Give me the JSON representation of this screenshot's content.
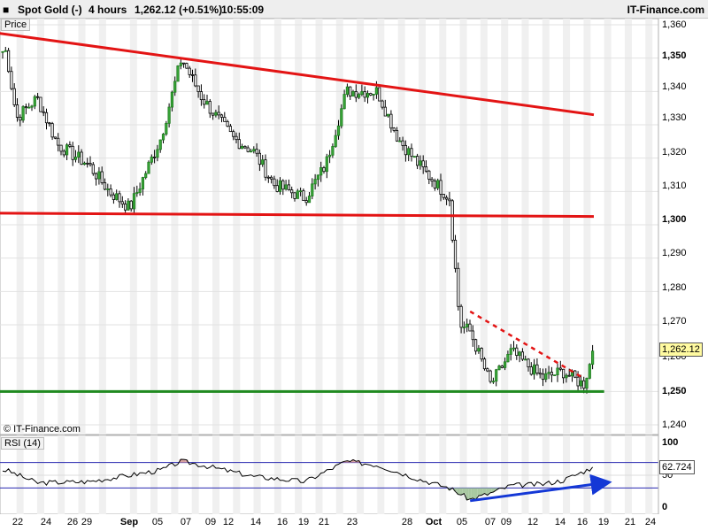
{
  "header": {
    "instrument": "Spot Gold (-)",
    "timeframe": "4 hours",
    "last_change": "1,262.12 (+0.51%)",
    "time": "10:55:09",
    "brand": "IT-Finance.com"
  },
  "price_pane": {
    "label": "Price",
    "copyright": "© IT-Finance.com",
    "last_price_label": "1,262.12"
  },
  "rsi_pane": {
    "label": "RSI (14)",
    "last_value_label": "62.724"
  },
  "colors": {
    "resistance_trendline": "#e31414",
    "support_line": "#1f8a1f",
    "breakout_line": "#e31414",
    "rsi_trendline": "#1438d6",
    "candle_up": "#1e7a1e",
    "candle_down": "#000000",
    "rsi_overbought_fill": "#d9a0a0",
    "rsi_oversold_fill": "#a8c8a0"
  },
  "chart_data": [
    {
      "type": "candlestick",
      "title": "Spot Gold (-) 4 hours",
      "ylabel": "Price",
      "ylim": [
        1240,
        1360
      ],
      "yticks": [
        "1,360",
        "1,350",
        "1,340",
        "1,330",
        "1,320",
        "1,310",
        "1,300",
        "1,290",
        "1,280",
        "1,270",
        "1,260",
        "1,250",
        "1,240"
      ],
      "x_tick_labels": [
        "22",
        "24",
        "26",
        "29",
        "Sep",
        "05",
        "07",
        "09",
        "12",
        "14",
        "16",
        "19",
        "21",
        "23",
        "28",
        "Oct",
        "05",
        "07",
        "09",
        "12",
        "14",
        "16",
        "19",
        "21",
        "24"
      ],
      "close_path": [
        {
          "x": "Aug 21",
          "y": 1352
        },
        {
          "x": "Aug 22",
          "y": 1332
        },
        {
          "x": "Aug 24",
          "y": 1338
        },
        {
          "x": "Aug 26",
          "y": 1324
        },
        {
          "x": "Aug 29",
          "y": 1318
        },
        {
          "x": "Aug 31",
          "y": 1310
        },
        {
          "x": "Sep 02",
          "y": 1305
        },
        {
          "x": "Sep 05",
          "y": 1326
        },
        {
          "x": "Sep 07",
          "y": 1350
        },
        {
          "x": "Sep 09",
          "y": 1338
        },
        {
          "x": "Sep 12",
          "y": 1326
        },
        {
          "x": "Sep 14",
          "y": 1322
        },
        {
          "x": "Sep 16",
          "y": 1312
        },
        {
          "x": "Sep 19",
          "y": 1308
        },
        {
          "x": "Sep 21",
          "y": 1318
        },
        {
          "x": "Sep 23",
          "y": 1340
        },
        {
          "x": "Sep 26",
          "y": 1340
        },
        {
          "x": "Sep 28",
          "y": 1326
        },
        {
          "x": "Sep 30",
          "y": 1318
        },
        {
          "x": "Oct 03",
          "y": 1308
        },
        {
          "x": "Oct 04",
          "y": 1270
        },
        {
          "x": "Oct 05",
          "y": 1268
        },
        {
          "x": "Oct 07",
          "y": 1252
        },
        {
          "x": "Oct 09",
          "y": 1262
        },
        {
          "x": "Oct 12",
          "y": 1254
        },
        {
          "x": "Oct 14",
          "y": 1256
        },
        {
          "x": "Oct 16",
          "y": 1252
        },
        {
          "x": "Oct 17",
          "y": 1262.12
        }
      ],
      "lines": [
        {
          "name": "descending resistance",
          "from": {
            "x": "Aug 19",
            "y": 1358
          },
          "to": {
            "x": "Oct 17",
            "y": 1333
          }
        },
        {
          "name": "1300 level",
          "from": {
            "x": "Aug 19",
            "y": 1303.5
          },
          "to": {
            "x": "Oct 17",
            "y": 1302.5
          }
        },
        {
          "name": "1250 support",
          "from": {
            "x": "Aug 19",
            "y": 1250
          },
          "to": {
            "x": "Oct 18",
            "y": 1250
          }
        },
        {
          "name": "breakout trendline (dashed)",
          "from": {
            "x": "Oct 05",
            "y": 1274
          },
          "to": {
            "x": "Oct 16",
            "y": 1254
          }
        }
      ],
      "last": 1262.12,
      "grid": true
    },
    {
      "type": "line",
      "title": "RSI (14)",
      "ylim": [
        0,
        100
      ],
      "yticks": [
        "100",
        "50",
        "0"
      ],
      "bands": [
        30,
        70
      ],
      "path": [
        {
          "x": "Aug 21",
          "y": 58
        },
        {
          "x": "Aug 24",
          "y": 38
        },
        {
          "x": "Aug 29",
          "y": 40
        },
        {
          "x": "Sep 02",
          "y": 50
        },
        {
          "x": "Sep 05",
          "y": 58
        },
        {
          "x": "Sep 07",
          "y": 72
        },
        {
          "x": "Sep 09",
          "y": 66
        },
        {
          "x": "Sep 14",
          "y": 48
        },
        {
          "x": "Sep 19",
          "y": 40
        },
        {
          "x": "Sep 23",
          "y": 72
        },
        {
          "x": "Sep 26",
          "y": 66
        },
        {
          "x": "Sep 30",
          "y": 44
        },
        {
          "x": "Oct 03",
          "y": 30
        },
        {
          "x": "Oct 05",
          "y": 12
        },
        {
          "x": "Oct 07",
          "y": 22
        },
        {
          "x": "Oct 09",
          "y": 34
        },
        {
          "x": "Oct 12",
          "y": 36
        },
        {
          "x": "Oct 14",
          "y": 42
        },
        {
          "x": "Oct 17",
          "y": 62.724
        }
      ],
      "trendline": {
        "from": {
          "x": "Oct 05",
          "y": 10
        },
        "to": {
          "x": "Oct 18",
          "y": 38
        }
      },
      "last": 62.724
    }
  ]
}
